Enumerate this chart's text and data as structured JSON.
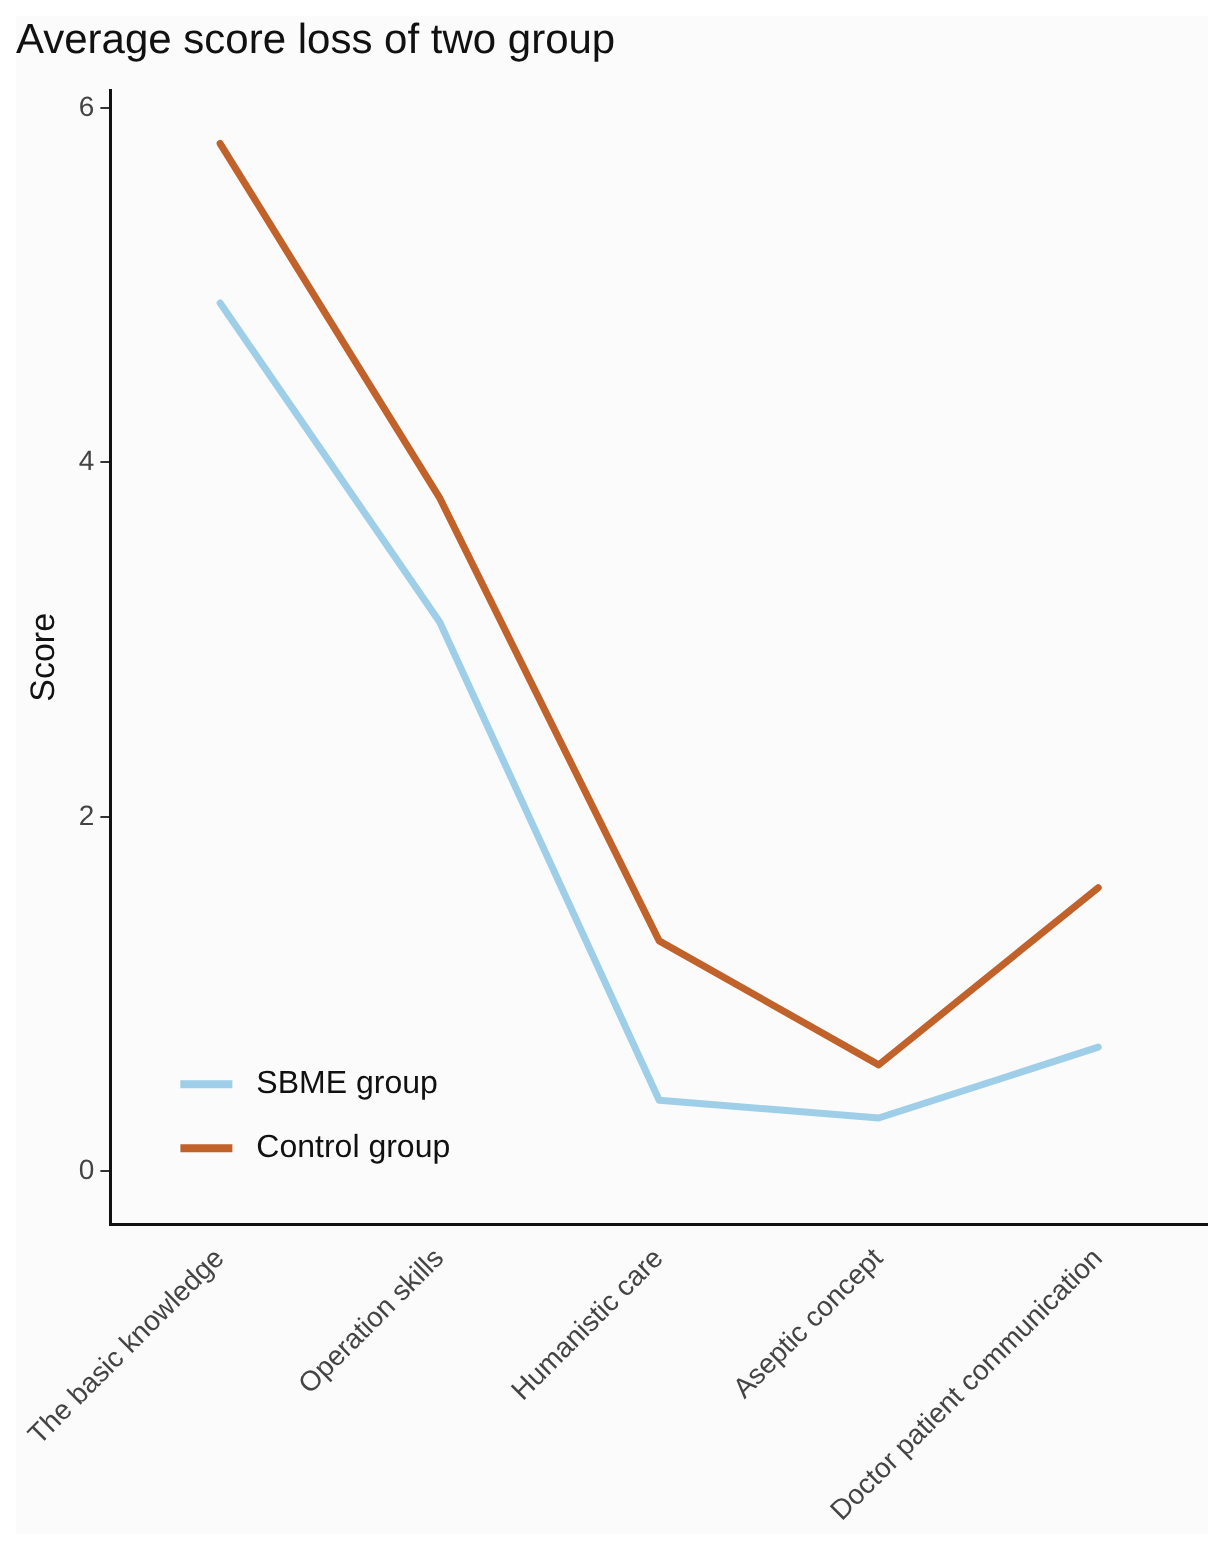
{
  "chart_data": {
    "type": "line",
    "title": "Average score loss of two group",
    "ylabel": "Score",
    "categories": [
      "The basic knowledge",
      "Operation skills",
      "Humanistic care",
      "Aseptic concept",
      "Doctor patient communication"
    ],
    "series": [
      {
        "name": "SBME group",
        "color": "#9fcfe8",
        "values": [
          4.9,
          3.1,
          0.4,
          0.3,
          0.7
        ]
      },
      {
        "name": "Control group",
        "color": "#c0622a",
        "values": [
          5.8,
          3.8,
          1.3,
          0.6,
          1.6
        ]
      }
    ],
    "ylim": [
      -0.3,
      6.1
    ],
    "yticks": [
      0,
      2,
      4,
      6
    ],
    "grid": false,
    "legend": "bottom left",
    "marker": "none",
    "line_style": "solid"
  }
}
